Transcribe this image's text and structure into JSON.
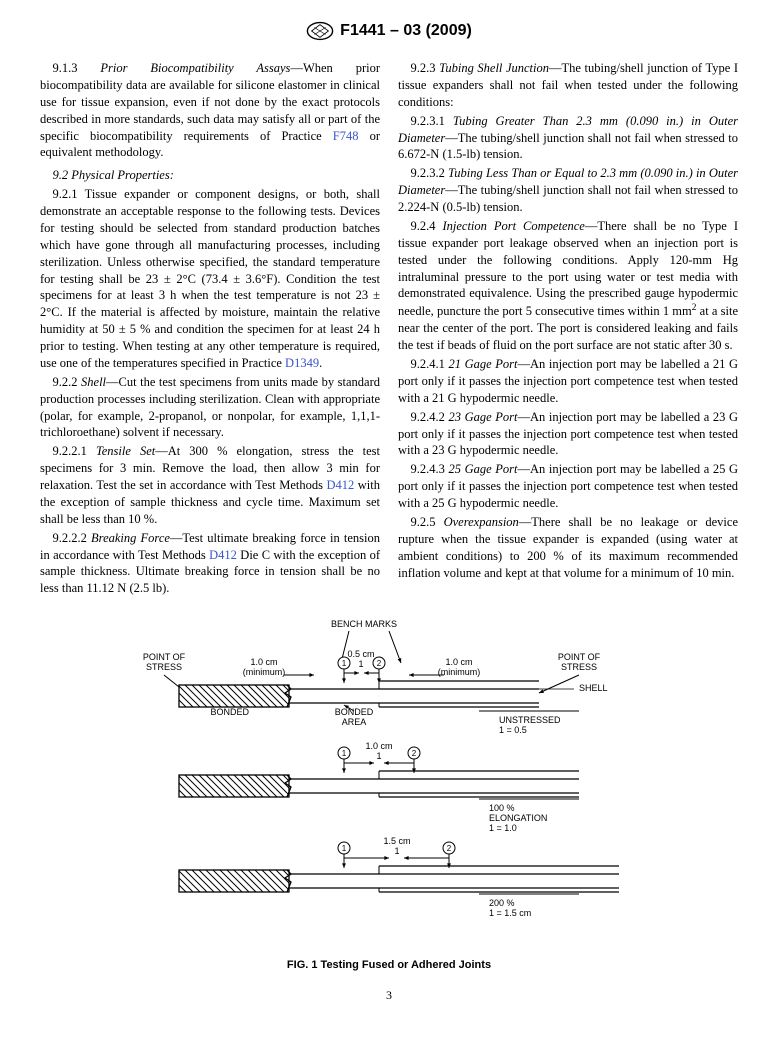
{
  "header": {
    "designation": "F1441 – 03 (2009)"
  },
  "leftCol": {
    "p913_num": "9.1.3",
    "p913_title": "Prior Biocompatibility Assays",
    "p913_body": "—When prior biocompatibility data are available for silicone elastomer in clinical use for tissue expansion, even if not done by the exact protocols described in more standards, such data may satisfy all or part of the specific biocompatibility requirements of Practice ",
    "p913_link": "F748",
    "p913_tail": " or equivalent methodology.",
    "p92_title": "9.2 Physical Properties:",
    "p921_num": "9.2.1",
    "p921_body": " Tissue expander or component designs, or both, shall demonstrate an acceptable response to the following tests. Devices for testing should be selected from standard production batches which have gone through all manufacturing processes, including sterilization. Unless otherwise specified, the standard temperature for testing shall be 23 ± 2°C (73.4 ± 3.6°F). Condition the test specimens for at least 3 h when the test temperature is not 23 ± 2°C. If the material is affected by moisture, maintain the relative humidity at 50 ± 5 % and condition the specimen for at least 24 h prior to testing. When testing at any other temperature is required, use one of the temperatures specified in Practice ",
    "p921_link": "D1349",
    "p921_tail": ".",
    "p922_num": "9.2.2",
    "p922_title": "Shell",
    "p922_body": "—Cut the test specimens from units made by standard production processes including sterilization. Clean with appropriate (polar, for example, 2-propanol, or nonpolar, for example, 1,1,1-trichloroethane) solvent if necessary.",
    "p9221_num": "9.2.2.1",
    "p9221_title": "Tensile Set",
    "p9221_body": "—At 300 % elongation, stress the test specimens for 3 min. Remove the load, then allow 3 min for relaxation. Test the set in accordance with Test Methods ",
    "p9221_link": "D412",
    "p9221_tail": " with the exception of sample thickness and cycle time. Maximum set shall be less than 10 %.",
    "p9222_num": "9.2.2.2",
    "p9222_title": "Breaking Force",
    "p9222_body": "—Test ultimate breaking force in tension in accordance with Test Methods ",
    "p9222_link": "D412",
    "p9222_tail": " Die C with the exception of sample thickness. Ultimate breaking force in tension shall be no less than 11.12 N (2.5 lb)."
  },
  "rightCol": {
    "p923_num": "9.2.3",
    "p923_title": "Tubing Shell Junction",
    "p923_body": "—The tubing/shell junction of Type I tissue expanders shall not fail when tested under the following conditions:",
    "p9231_num": "9.2.3.1",
    "p9231_title": "Tubing Greater Than 2.3 mm (0.090 in.) in Outer Diameter",
    "p9231_body": "—The tubing/shell junction shall not fail when stressed to 6.672-N (1.5-lb) tension.",
    "p9232_num": "9.2.3.2",
    "p9232_title": "Tubing Less Than or Equal to 2.3 mm (0.090 in.) in Outer Diameter",
    "p9232_body": "—The tubing/shell junction shall not fail when stressed to 2.224-N (0.5-lb) tension.",
    "p924_num": "9.2.4",
    "p924_title": "Injection Port Competence",
    "p924_body_a": "—There shall be no Type I tissue expander port leakage observed when an injection port is tested under the following conditions. Apply 120-mm Hg intraluminal pressure to the port using water or test media with demonstrated equivalence. Using the prescribed gauge hypodermic needle, puncture the port 5 consecutive times within 1 mm",
    "p924_body_b": " at a site near the center of the port. The port is considered leaking and fails the test if beads of fluid on the port surface are not static after 30 s.",
    "p9241_num": "9.2.4.1",
    "p9241_title": "21 Gage Port",
    "p9241_body": "—An injection port may be labelled a 21 G port only if it passes the injection port competence test when tested with a 21 G hypodermic needle.",
    "p9242_num": "9.2.4.2",
    "p9242_title": "23 Gage Port",
    "p9242_body": "—An injection port may be labelled a 23 G port only if it passes the injection port competence test when tested with a 23 G hypodermic needle.",
    "p9243_num": "9.2.4.3",
    "p9243_title": "25 Gage Port",
    "p9243_body": "—An injection port may be labelled a 25 G port only if it passes the injection port competence test when tested with a 25 G hypodermic needle.",
    "p925_num": "9.2.5",
    "p925_title": "Overexpansion",
    "p925_body": "—There shall be no leakage or device rupture when the tissue expander is expanded (using water at ambient conditions) to 200 % of its maximum recommended inflation volume and kept at that volume for a minimum of 10 min."
  },
  "figure": {
    "labels": {
      "bench": "BENCH MARKS",
      "pos_left": "POINT OF\nSTRESS",
      "pos_right": "POINT OF\nSTRESS",
      "bonded": "BONDED",
      "bonded_area": "BONDED\nAREA",
      "shell": "SHELL",
      "unstressed": "UNSTRESSED\n1 = 0.5",
      "min_left": "1.0 cm\n(minimum)",
      "min_right": "1.0 cm\n(minimum)",
      "l05": "0.5 cm\n1",
      "l10": "1.0 cm\n1",
      "elong100": "100 %\nELONGATION\n1 = 1.0",
      "l15": "1.5 cm\n1",
      "elong200": "200 %\n1 = 1.5 cm",
      "c1": "1",
      "c2": "2"
    },
    "caption": "FIG. 1  Testing Fused or Adhered Joints",
    "style": {
      "stroke": "#000000",
      "line_width": 1.3,
      "font_family": "Arial, Helvetica, sans-serif",
      "label_fontsize": 9,
      "background": "#ffffff"
    }
  },
  "pageNumber": "3"
}
